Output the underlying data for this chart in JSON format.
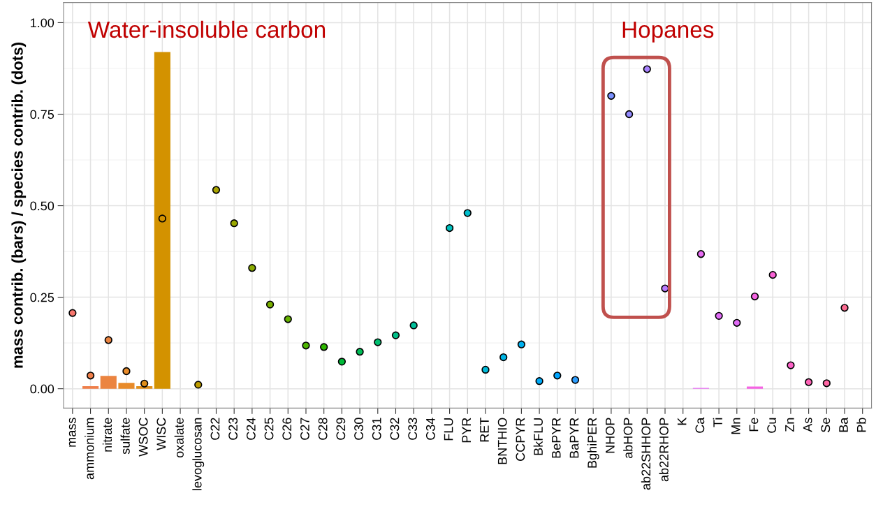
{
  "chart_data": {
    "type": "bar",
    "ylabel": "mass contrib. (bars) / species contrib. (dots)",
    "categories": [
      "mass",
      "ammonium",
      "nitrate",
      "sulfate",
      "WSOC",
      "WISC",
      "oxalate",
      "levoglucosan",
      "C22",
      "C23",
      "C24",
      "C25",
      "C26",
      "C27",
      "C28",
      "C29",
      "C30",
      "C31",
      "C32",
      "C33",
      "C34",
      "FLU",
      "PYR",
      "RET",
      "BNTHIO",
      "CCPYR",
      "BkFLU",
      "BePYR",
      "BaPYR",
      "BghiPER",
      "NHOP",
      "abHOP",
      "ab22SHHOP",
      "ab22RHOP",
      "K",
      "Ca",
      "Ti",
      "Mn",
      "Fe",
      "Cu",
      "Zn",
      "As",
      "Se",
      "Ba",
      "Pb"
    ],
    "series": [
      {
        "values": [
          null,
          0.007,
          0.035,
          0.016,
          0.007,
          0.92,
          null,
          null,
          null,
          null,
          null,
          null,
          null,
          null,
          null,
          null,
          null,
          null,
          null,
          null,
          null,
          null,
          null,
          null,
          null,
          null,
          null,
          null,
          null,
          null,
          null,
          null,
          null,
          null,
          null,
          0.002,
          null,
          null,
          0.006,
          null,
          null,
          null,
          null,
          null,
          null
        ],
        "colors": [
          "#F8766D",
          "#EF7F4A",
          "#EB8440",
          "#E88B2A",
          "#E08E1A",
          "#D39200",
          "#C99800",
          "#BE9C00",
          "#A9A400",
          "#9AA800",
          "#8AAB00",
          "#79AF00",
          "#65B200",
          "#4DB500",
          "#2DB700",
          "#00BA38",
          "#00BC56",
          "#00BE70",
          "#00BF87",
          "#00C09B",
          "#00C1AD",
          "#00C0BE",
          "#00BECD",
          "#00BBDA",
          "#00B6E6",
          "#00B1F0",
          "#00ABF9",
          "#00A5FF",
          "#2D9EFF",
          "#5A97FF",
          "#7A91FF",
          "#938AFF",
          "#A882FF",
          "#BA7BFF",
          "#CA73FF",
          "#E76BF3",
          "#E06BF6",
          "#E86AEC",
          "#F564E3",
          "#F962D6",
          "#FC61C7",
          "#FE62B6",
          "#FF66A4",
          "#FC6C92",
          "#F8727F"
        ]
      },
      {
        "type": "scatter",
        "marker": "circle",
        "values": [
          0.207,
          0.036,
          0.133,
          0.048,
          0.014,
          0.465,
          null,
          0.011,
          0.543,
          0.452,
          0.33,
          0.23,
          0.19,
          0.118,
          0.114,
          0.074,
          0.101,
          0.127,
          0.146,
          0.173,
          null,
          0.439,
          0.48,
          0.052,
          0.086,
          0.121,
          0.021,
          0.036,
          0.024,
          null,
          0.8,
          0.75,
          0.873,
          0.274,
          null,
          0.368,
          0.199,
          0.18,
          0.252,
          0.311,
          0.064,
          0.018,
          0.015,
          0.221,
          null
        ],
        "colors": [
          "#F8766D",
          "#EF7F4A",
          "#EB8440",
          "#E88B2A",
          "#E08E1A",
          "#D39200",
          "#C99800",
          "#BE9C00",
          "#A9A400",
          "#9AA800",
          "#8AAB00",
          "#79AF00",
          "#65B200",
          "#4DB500",
          "#2DB700",
          "#00BA38",
          "#00BC56",
          "#00BE70",
          "#00BF87",
          "#00C09B",
          "#00C1AD",
          "#00C0BE",
          "#00BECD",
          "#00BBDA",
          "#00B6E6",
          "#00B1F0",
          "#00ABF9",
          "#00A5FF",
          "#2D9EFF",
          "#5A97FF",
          "#7A91FF",
          "#938AFF",
          "#A882FF",
          "#BA7BFF",
          "#CA73FF",
          "#E76BF3",
          "#E06BF6",
          "#E06BF6",
          "#F564E3",
          "#F962D6",
          "#FC61C7",
          "#FE62B6",
          "#FF66A4",
          "#FC6C92",
          "#F8727F"
        ]
      }
    ],
    "ylim": [
      -0.053,
      1.055
    ],
    "yticks": [
      {
        "value": 0,
        "label": "0.00"
      },
      {
        "value": 0.25,
        "label": "0.25"
      },
      {
        "value": 0.5,
        "label": "0.50"
      },
      {
        "value": 0.75,
        "label": "0.75"
      },
      {
        "value": 1,
        "label": "1.00"
      }
    ],
    "grid": true,
    "annotations": [
      "Water-insoluble carbon",
      "Hopanes"
    ]
  }
}
